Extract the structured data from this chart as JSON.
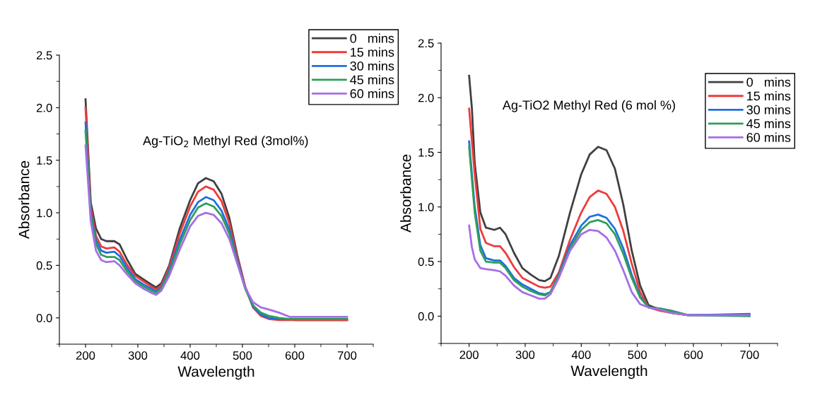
{
  "chart_data": [
    {
      "type": "line",
      "title": "Ag-TiO$_{2}$ Methyl Red (3mol%)",
      "xlabel": "Wavelength",
      "ylabel": "Absorbance",
      "xlim": [
        150,
        750
      ],
      "xticks": [
        200,
        300,
        400,
        500,
        600,
        700
      ],
      "ylim": [
        -0.25,
        2.5
      ],
      "yticks": [
        {
          "value": 0,
          "label": "0.0"
        },
        0.5,
        {
          "value": 1,
          "label": "1.0"
        },
        1.5,
        {
          "value": 2,
          "label": "2.0"
        },
        2.5
      ],
      "legend": "top right",
      "grid": false,
      "line_style": "solid",
      "marker": "none",
      "x": [
        200,
        210,
        220,
        230,
        240,
        255,
        265,
        280,
        295,
        310,
        325,
        335,
        345,
        360,
        380,
        400,
        415,
        430,
        445,
        460,
        475,
        490,
        505,
        520,
        535,
        550,
        570,
        590,
        600,
        700
      ],
      "series": [
        {
          "name": "0   mins",
          "color": "#404040",
          "values": [
            2.08,
            1.1,
            0.85,
            0.75,
            0.73,
            0.73,
            0.7,
            0.55,
            0.42,
            0.37,
            0.32,
            0.29,
            0.33,
            0.5,
            0.85,
            1.12,
            1.28,
            1.33,
            1.3,
            1.18,
            0.95,
            0.6,
            0.3,
            0.12,
            0.03,
            0.0,
            -0.01,
            -0.01,
            -0.02,
            -0.02
          ]
        },
        {
          "name": "15 mins",
          "color": "#ee3b3b",
          "values": [
            2.0,
            1.05,
            0.78,
            0.68,
            0.66,
            0.67,
            0.63,
            0.5,
            0.4,
            0.35,
            0.3,
            0.27,
            0.31,
            0.48,
            0.8,
            1.06,
            1.2,
            1.25,
            1.22,
            1.11,
            0.9,
            0.58,
            0.3,
            0.1,
            0.02,
            -0.01,
            -0.02,
            -0.02,
            -0.02,
            -0.02
          ]
        },
        {
          "name": "30 mins",
          "color": "#1f6fe0",
          "values": [
            1.86,
            1.0,
            0.74,
            0.64,
            0.62,
            0.63,
            0.59,
            0.47,
            0.37,
            0.32,
            0.28,
            0.25,
            0.29,
            0.45,
            0.74,
            0.98,
            1.1,
            1.15,
            1.12,
            1.02,
            0.84,
            0.55,
            0.29,
            0.11,
            0.03,
            0.0,
            -0.01,
            -0.01,
            null,
            null
          ]
        },
        {
          "name": "45 mins",
          "color": "#2e9e5a",
          "values": [
            1.78,
            0.98,
            0.7,
            0.6,
            0.58,
            0.58,
            0.55,
            0.44,
            0.35,
            0.3,
            0.26,
            0.24,
            0.28,
            0.43,
            0.7,
            0.93,
            1.05,
            1.09,
            1.06,
            0.97,
            0.8,
            0.53,
            0.28,
            0.12,
            0.05,
            0.02,
            0.0,
            -0.01,
            -0.01,
            -0.01
          ]
        },
        {
          "name": "60 mins",
          "color": "#a66ee6",
          "values": [
            1.64,
            0.92,
            0.64,
            0.55,
            0.53,
            0.54,
            0.5,
            0.41,
            0.33,
            0.28,
            0.24,
            0.22,
            0.26,
            0.4,
            0.65,
            0.87,
            0.97,
            1.0,
            0.98,
            0.9,
            0.75,
            0.52,
            0.29,
            0.15,
            0.1,
            0.08,
            0.05,
            0.01,
            0.01,
            0.01
          ]
        }
      ]
    },
    {
      "type": "line",
      "title": "Ag-TiO2 Methyl Red (6 mol %)",
      "xlabel": "Wavelength",
      "ylabel": "Absorbance",
      "xlim": [
        150,
        750
      ],
      "xticks": [
        200,
        300,
        400,
        500,
        600,
        700
      ],
      "ylim": [
        -0.25,
        2.5
      ],
      "yticks": [
        {
          "value": 0,
          "label": "0.0"
        },
        0.5,
        {
          "value": 1,
          "label": "1.0"
        },
        1.5,
        {
          "value": 2,
          "label": "2.0"
        },
        2.5
      ],
      "legend": "top right",
      "grid": false,
      "line_style": "solid",
      "marker": "none",
      "x": [
        200,
        205,
        210,
        220,
        230,
        245,
        255,
        265,
        280,
        295,
        310,
        325,
        335,
        345,
        360,
        380,
        400,
        415,
        430,
        445,
        460,
        475,
        490,
        505,
        520,
        540,
        560,
        590,
        700
      ],
      "series": [
        {
          "name": "0   mins",
          "color": "#404040",
          "values": [
            2.2,
            1.9,
            1.4,
            0.95,
            0.81,
            0.79,
            0.81,
            0.75,
            0.58,
            0.44,
            0.38,
            0.33,
            0.32,
            0.35,
            0.55,
            0.95,
            1.3,
            1.48,
            1.55,
            1.52,
            1.35,
            1.02,
            0.6,
            0.28,
            0.1,
            0.06,
            0.03,
            0.01,
            0.01
          ]
        },
        {
          "name": "15 mins",
          "color": "#ee3b3b",
          "values": [
            1.9,
            1.6,
            1.3,
            0.8,
            0.67,
            0.64,
            0.64,
            0.58,
            0.45,
            0.35,
            0.31,
            0.27,
            0.26,
            0.27,
            0.4,
            0.7,
            0.95,
            1.09,
            1.15,
            1.12,
            1.0,
            0.78,
            0.48,
            0.22,
            0.08,
            0.05,
            0.03,
            0.01,
            0.01
          ]
        },
        {
          "name": "30 mins",
          "color": "#1f6fe0",
          "values": [
            1.6,
            1.3,
            1.0,
            0.65,
            0.53,
            0.51,
            0.51,
            0.46,
            0.35,
            0.29,
            0.25,
            0.21,
            0.2,
            0.22,
            0.38,
            0.65,
            0.83,
            0.91,
            0.93,
            0.9,
            0.8,
            0.62,
            0.38,
            0.18,
            0.08,
            0.07,
            0.05,
            0.01,
            0.02
          ]
        },
        {
          "name": "45 mins",
          "color": "#2e9e5a",
          "values": [
            1.55,
            1.25,
            0.95,
            0.6,
            0.5,
            0.49,
            0.49,
            0.44,
            0.33,
            0.27,
            0.23,
            0.2,
            0.19,
            0.22,
            0.37,
            0.62,
            0.79,
            0.86,
            0.88,
            0.85,
            0.75,
            0.57,
            0.35,
            0.17,
            0.08,
            0.07,
            0.05,
            0.01,
            0.0
          ]
        },
        {
          "name": "60 mins",
          "color": "#a66ee6",
          "values": [
            0.83,
            0.63,
            0.52,
            0.44,
            0.43,
            0.42,
            0.41,
            0.37,
            0.28,
            0.22,
            0.19,
            0.16,
            0.16,
            0.2,
            0.35,
            0.6,
            0.75,
            0.79,
            0.78,
            0.72,
            0.6,
            0.42,
            0.22,
            0.11,
            0.08,
            0.06,
            0.03,
            0.01,
            0.01
          ]
        }
      ]
    }
  ]
}
